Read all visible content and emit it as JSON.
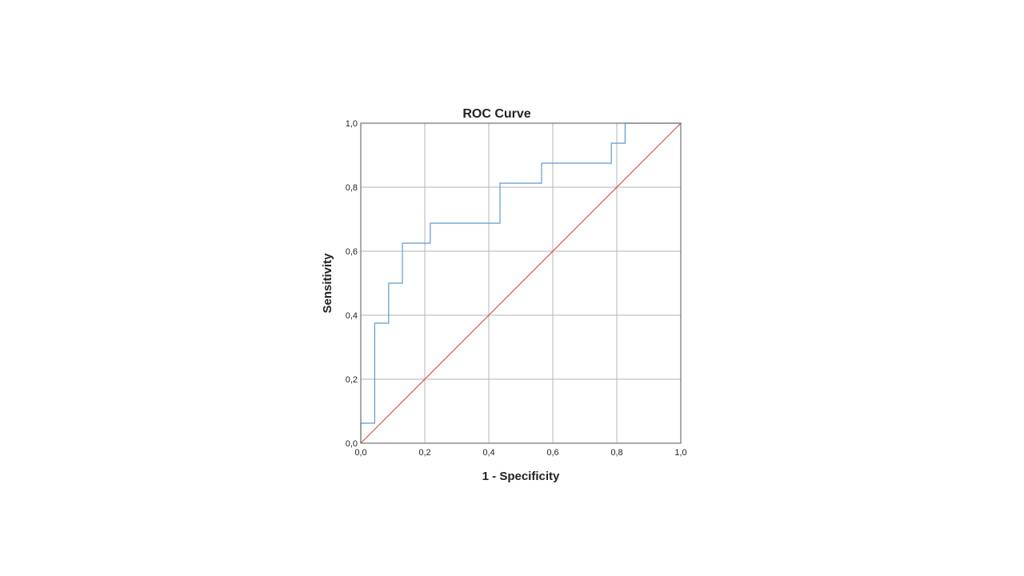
{
  "chart_data": {
    "type": "line",
    "title": "ROC Curve",
    "xlabel": "1 - Specificity",
    "ylabel": "Sensitivity",
    "xlim": [
      0,
      1
    ],
    "ylim": [
      0,
      1
    ],
    "grid": true,
    "x_ticks": [
      "0,0",
      "0,2",
      "0,4",
      "0,6",
      "0,8",
      "1,0"
    ],
    "y_ticks": [
      "0,0",
      "0,2",
      "0,4",
      "0,6",
      "0,8",
      "1,0"
    ],
    "series": [
      {
        "color": "#5b9bd5",
        "step": true,
        "points": [
          [
            0.0,
            0.0
          ],
          [
            0.0,
            0.0625
          ],
          [
            0.0435,
            0.0625
          ],
          [
            0.0435,
            0.375
          ],
          [
            0.087,
            0.375
          ],
          [
            0.087,
            0.5
          ],
          [
            0.13,
            0.5
          ],
          [
            0.13,
            0.625
          ],
          [
            0.217,
            0.625
          ],
          [
            0.217,
            0.6875
          ],
          [
            0.435,
            0.6875
          ],
          [
            0.435,
            0.8125
          ],
          [
            0.565,
            0.8125
          ],
          [
            0.565,
            0.875
          ],
          [
            0.783,
            0.875
          ],
          [
            0.783,
            0.9375
          ],
          [
            0.826,
            0.9375
          ],
          [
            0.826,
            1.0
          ],
          [
            1.0,
            1.0
          ]
        ]
      },
      {
        "color": "#d9534f",
        "step": false,
        "points": [
          [
            0,
            0
          ],
          [
            1,
            1
          ]
        ]
      }
    ]
  }
}
